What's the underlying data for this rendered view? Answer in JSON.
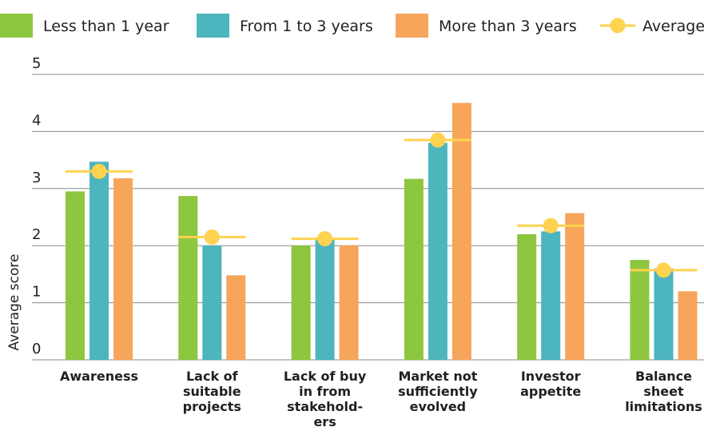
{
  "chart_data": {
    "type": "bar",
    "title": "",
    "xlabel": "",
    "ylabel": "Average score",
    "ylim": [
      0,
      5
    ],
    "yticks": [
      "0",
      "1",
      "2",
      "3",
      "4",
      "5"
    ],
    "grid": true,
    "legend_position": "top",
    "categories": [
      [
        "Awareness"
      ],
      [
        "Lack of",
        "suitable",
        "projects"
      ],
      [
        "Lack of buy",
        "in from",
        "stakehold-",
        "ers"
      ],
      [
        "Market not",
        "sufficiently",
        "evolved"
      ],
      [
        "Investor",
        "appetite"
      ],
      [
        "Balance",
        "sheet",
        "limitations"
      ]
    ],
    "series": [
      {
        "name": "Less than 1 year",
        "color": "#8dc63f",
        "values": [
          2.95,
          2.87,
          2.0,
          3.17,
          2.2,
          1.75
        ]
      },
      {
        "name": "From 1 to 3 years",
        "color": "#4cb5be",
        "values": [
          3.47,
          2.0,
          2.1,
          3.8,
          2.25,
          1.6
        ]
      },
      {
        "name": "More than 3 years",
        "color": "#f7a55b",
        "values": [
          3.18,
          1.48,
          2.0,
          4.5,
          2.57,
          1.2
        ]
      }
    ],
    "average": {
      "name": "Average",
      "color": "#ffd24f",
      "values": [
        3.3,
        2.15,
        2.12,
        3.85,
        2.35,
        1.57
      ]
    }
  }
}
